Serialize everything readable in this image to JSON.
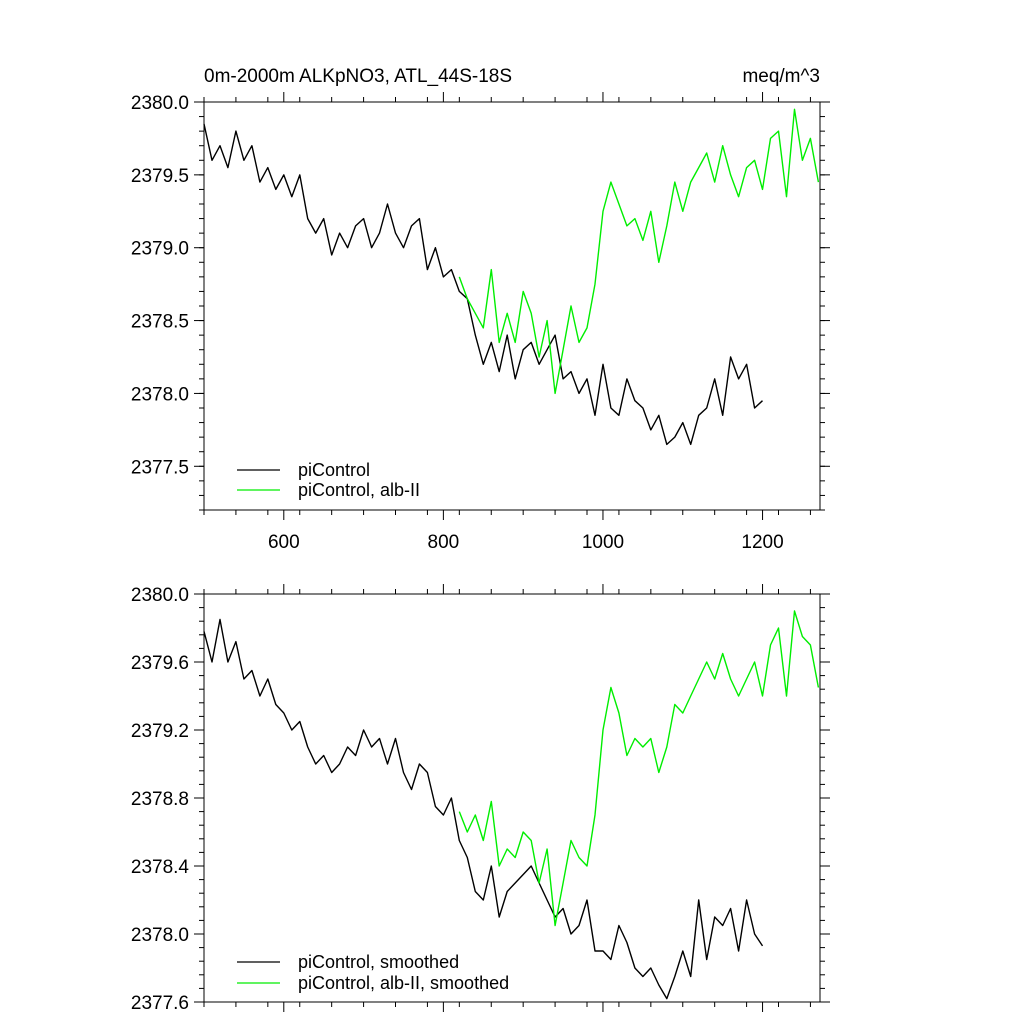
{
  "chart_data": [
    {
      "type": "line",
      "title": "0m-2000m ALKpNO3, ATL_44S-18S",
      "units": "meq/m^3",
      "xlim": [
        500,
        1272
      ],
      "ylim": [
        2377.2,
        2380.0
      ],
      "xticks": [
        600,
        800,
        1000,
        1200
      ],
      "xtick_labels": [
        "600",
        "800",
        "1000",
        "1200"
      ],
      "yticks": [
        2377.5,
        2378.0,
        2378.5,
        2379.0,
        2379.5,
        2380.0
      ],
      "ytick_labels": [
        "2377.5",
        "2378.0",
        "2378.5",
        "2379.0",
        "2379.5",
        "2380.0"
      ],
      "grid": false,
      "legend_position": "bottom-left",
      "series": [
        {
          "name": "piControl",
          "color": "#000000",
          "x": [
            500,
            510,
            520,
            530,
            540,
            550,
            560,
            570,
            580,
            590,
            600,
            610,
            620,
            630,
            640,
            650,
            660,
            670,
            680,
            690,
            700,
            710,
            720,
            730,
            740,
            750,
            760,
            770,
            780,
            790,
            800,
            810,
            820,
            830,
            840,
            850,
            860,
            870,
            880,
            890,
            900,
            910,
            920,
            930,
            940,
            950,
            960,
            970,
            980,
            990,
            1000,
            1010,
            1020,
            1030,
            1040,
            1050,
            1060,
            1070,
            1080,
            1090,
            1100,
            1110,
            1120,
            1130,
            1140,
            1150,
            1160,
            1170,
            1180,
            1190,
            1200
          ],
          "y": [
            2379.85,
            2379.6,
            2379.7,
            2379.55,
            2379.8,
            2379.6,
            2379.7,
            2379.45,
            2379.55,
            2379.4,
            2379.5,
            2379.35,
            2379.5,
            2379.2,
            2379.1,
            2379.2,
            2378.95,
            2379.1,
            2379.0,
            2379.15,
            2379.2,
            2379.0,
            2379.1,
            2379.3,
            2379.1,
            2379.0,
            2379.15,
            2379.2,
            2378.85,
            2379.0,
            2378.8,
            2378.85,
            2378.7,
            2378.65,
            2378.4,
            2378.2,
            2378.35,
            2378.15,
            2378.4,
            2378.1,
            2378.3,
            2378.35,
            2378.2,
            2378.3,
            2378.4,
            2378.1,
            2378.15,
            2378.0,
            2378.1,
            2377.85,
            2378.2,
            2377.9,
            2377.85,
            2378.1,
            2377.95,
            2377.9,
            2377.75,
            2377.85,
            2377.65,
            2377.7,
            2377.8,
            2377.65,
            2377.85,
            2377.9,
            2378.1,
            2377.85,
            2378.25,
            2378.1,
            2378.2,
            2377.9,
            2377.95
          ]
        },
        {
          "name": "piControl, alb-II",
          "color": "#00ee00",
          "x": [
            820,
            830,
            840,
            850,
            860,
            870,
            880,
            890,
            900,
            910,
            920,
            930,
            940,
            950,
            960,
            970,
            980,
            990,
            1000,
            1010,
            1020,
            1030,
            1040,
            1050,
            1060,
            1070,
            1080,
            1090,
            1100,
            1110,
            1120,
            1130,
            1140,
            1150,
            1160,
            1170,
            1180,
            1190,
            1200,
            1210,
            1220,
            1230,
            1240,
            1250,
            1260,
            1270
          ],
          "y": [
            2378.8,
            2378.65,
            2378.55,
            2378.45,
            2378.85,
            2378.35,
            2378.55,
            2378.35,
            2378.7,
            2378.55,
            2378.25,
            2378.5,
            2378.0,
            2378.3,
            2378.6,
            2378.35,
            2378.45,
            2378.75,
            2379.25,
            2379.45,
            2379.3,
            2379.15,
            2379.2,
            2379.05,
            2379.25,
            2378.9,
            2379.15,
            2379.45,
            2379.25,
            2379.45,
            2379.55,
            2379.65,
            2379.45,
            2379.7,
            2379.5,
            2379.35,
            2379.55,
            2379.6,
            2379.4,
            2379.75,
            2379.8,
            2379.35,
            2379.95,
            2379.6,
            2379.75,
            2379.45
          ]
        }
      ]
    },
    {
      "type": "line",
      "xlim": [
        500,
        1272
      ],
      "ylim": [
        2377.6,
        2380.0
      ],
      "xticks": [
        600,
        800,
        1000,
        1200
      ],
      "yticks": [
        2377.6,
        2378.0,
        2378.4,
        2378.8,
        2379.2,
        2379.6,
        2380.0
      ],
      "ytick_labels": [
        "2377.6",
        "2378.0",
        "2378.4",
        "2378.8",
        "2379.2",
        "2379.6",
        "2380.0"
      ],
      "grid": false,
      "legend_position": "bottom-left",
      "series": [
        {
          "name": "piControl, smoothed",
          "color": "#000000",
          "x": [
            500,
            510,
            520,
            530,
            540,
            550,
            560,
            570,
            580,
            590,
            600,
            610,
            620,
            630,
            640,
            650,
            660,
            670,
            680,
            690,
            700,
            710,
            720,
            730,
            740,
            750,
            760,
            770,
            780,
            790,
            800,
            810,
            820,
            830,
            840,
            850,
            860,
            870,
            880,
            890,
            900,
            910,
            920,
            930,
            940,
            950,
            960,
            970,
            980,
            990,
            1000,
            1010,
            1020,
            1030,
            1040,
            1050,
            1060,
            1070,
            1080,
            1090,
            1100,
            1110,
            1120,
            1130,
            1140,
            1150,
            1160,
            1170,
            1180,
            1190,
            1200
          ],
          "y": [
            2379.78,
            2379.6,
            2379.85,
            2379.6,
            2379.72,
            2379.5,
            2379.55,
            2379.4,
            2379.5,
            2379.35,
            2379.3,
            2379.2,
            2379.25,
            2379.1,
            2379.0,
            2379.05,
            2378.95,
            2379.0,
            2379.1,
            2379.05,
            2379.2,
            2379.1,
            2379.15,
            2379.0,
            2379.15,
            2378.95,
            2378.85,
            2379.0,
            2378.95,
            2378.75,
            2378.7,
            2378.8,
            2378.55,
            2378.45,
            2378.25,
            2378.2,
            2378.4,
            2378.1,
            2378.25,
            2378.3,
            2378.35,
            2378.4,
            2378.3,
            2378.2,
            2378.1,
            2378.15,
            2378.0,
            2378.05,
            2378.2,
            2377.9,
            2377.9,
            2377.85,
            2378.05,
            2377.95,
            2377.8,
            2377.75,
            2377.8,
            2377.7,
            2377.62,
            2377.75,
            2377.9,
            2377.75,
            2378.2,
            2377.85,
            2378.1,
            2378.05,
            2378.15,
            2377.9,
            2378.2,
            2378.0,
            2377.93
          ]
        },
        {
          "name": "piControl, alb-II, smoothed",
          "color": "#00ee00",
          "x": [
            820,
            830,
            840,
            850,
            860,
            870,
            880,
            890,
            900,
            910,
            920,
            930,
            940,
            950,
            960,
            970,
            980,
            990,
            1000,
            1010,
            1020,
            1030,
            1040,
            1050,
            1060,
            1070,
            1080,
            1090,
            1100,
            1110,
            1120,
            1130,
            1140,
            1150,
            1160,
            1170,
            1180,
            1190,
            1200,
            1210,
            1220,
            1230,
            1240,
            1250,
            1260,
            1270
          ],
          "y": [
            2378.72,
            2378.6,
            2378.7,
            2378.55,
            2378.78,
            2378.4,
            2378.5,
            2378.45,
            2378.6,
            2378.55,
            2378.3,
            2378.5,
            2378.05,
            2378.3,
            2378.55,
            2378.45,
            2378.4,
            2378.7,
            2379.2,
            2379.45,
            2379.3,
            2379.05,
            2379.15,
            2379.1,
            2379.15,
            2378.95,
            2379.1,
            2379.35,
            2379.3,
            2379.4,
            2379.5,
            2379.6,
            2379.5,
            2379.65,
            2379.5,
            2379.4,
            2379.5,
            2379.6,
            2379.4,
            2379.7,
            2379.8,
            2379.4,
            2379.9,
            2379.75,
            2379.7,
            2379.45
          ]
        }
      ]
    }
  ]
}
